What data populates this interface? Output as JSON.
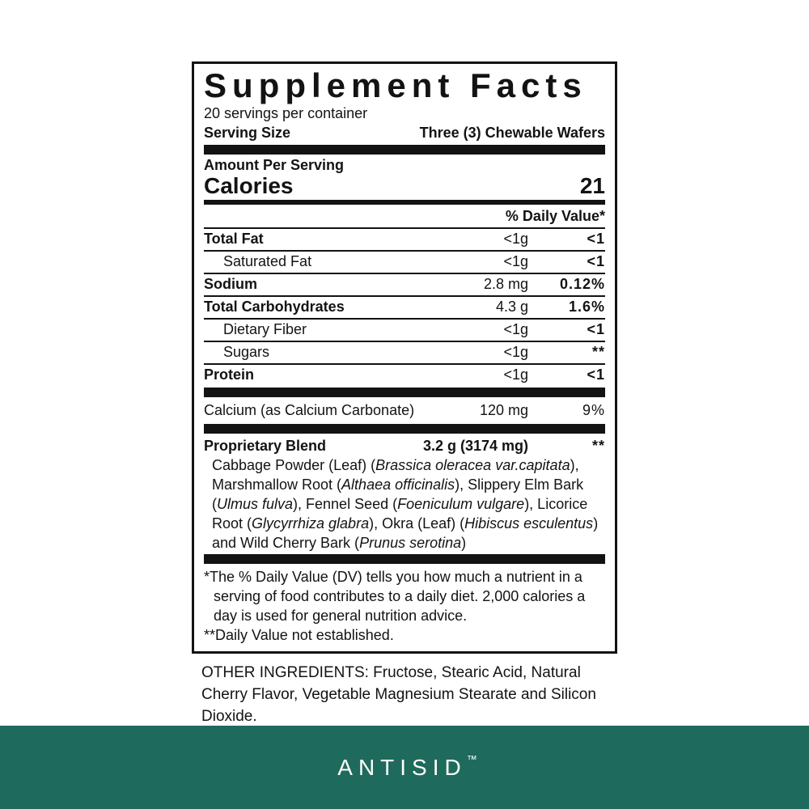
{
  "label": {
    "title": "Supplement Facts",
    "servings_per_container": "20 servings per container",
    "serving_size_label": "Serving Size",
    "serving_size_value": "Three (3) Chewable Wafers",
    "amount_per_serving": "Amount Per Serving",
    "calories_label": "Calories",
    "calories_value": "21",
    "daily_value_header": "% Daily Value*",
    "nutrient_rows": [
      {
        "name": "Total Fat",
        "amount": "<1g",
        "dv": "<1",
        "bold": true,
        "indent": false,
        "dv_bold": true
      },
      {
        "name": "Saturated Fat",
        "amount": "<1g",
        "dv": "<1",
        "bold": false,
        "indent": true,
        "dv_bold": true
      },
      {
        "name": "Sodium",
        "amount": "2.8 mg",
        "dv": "0.12%",
        "bold": true,
        "indent": false,
        "dv_bold": true
      },
      {
        "name": "Total Carbohydrates",
        "amount": "4.3 g",
        "dv": "1.6%",
        "bold": true,
        "indent": false,
        "dv_bold": true
      },
      {
        "name": "Dietary Fiber",
        "amount": "<1g",
        "dv": "<1",
        "bold": false,
        "indent": true,
        "dv_bold": true
      },
      {
        "name": "Sugars",
        "amount": "<1g",
        "dv": "**",
        "bold": false,
        "indent": true,
        "dv_bold": true
      },
      {
        "name": "Protein",
        "amount": "<1g",
        "dv": "<1",
        "bold": true,
        "indent": false,
        "dv_bold": true
      }
    ],
    "calcium_row": {
      "name": "Calcium (as Calcium Carbonate)",
      "amount": "120 mg",
      "dv": "9%"
    },
    "blend": {
      "name": "Proprietary Blend",
      "amount": "3.2 g (3174 mg)",
      "dv": "**",
      "description": [
        {
          "text": "Cabbage Powder (Leaf) (",
          "italic": false
        },
        {
          "text": "Brassica oleracea var.capitata",
          "italic": true
        },
        {
          "text": "), Marshmallow Root (",
          "italic": false
        },
        {
          "text": "Althaea officinalis",
          "italic": true
        },
        {
          "text": "), Slippery Elm Bark (",
          "italic": false
        },
        {
          "text": "Ulmus fulva",
          "italic": true
        },
        {
          "text": "), Fennel Seed (",
          "italic": false
        },
        {
          "text": "Foeniculum vulgare",
          "italic": true
        },
        {
          "text": "), Licorice Root (",
          "italic": false
        },
        {
          "text": "Glycyrrhiza glabra",
          "italic": true
        },
        {
          "text": "), Okra (Leaf) (",
          "italic": false
        },
        {
          "text": "Hibiscus esculentus",
          "italic": true
        },
        {
          "text": ") and Wild Cherry Bark (",
          "italic": false
        },
        {
          "text": "Prunus serotina",
          "italic": true
        },
        {
          "text": ")",
          "italic": false
        }
      ]
    },
    "footnote_dv": {
      "marker": "*",
      "text": "The % Daily Value (DV) tells you how much a nutrient in a serving of food contributes to a daily diet. 2,000 calories a day is used for general nutrition advice."
    },
    "footnote_ne": {
      "marker": "**",
      "text": "Daily Value not established."
    }
  },
  "other_ingredients": "OTHER INGREDIENTS: Fructose, Stearic Acid, Natural Cherry Flavor, Vegetable Magnesium Stearate and Silicon Dioxide.",
  "brand": {
    "name": "ANTISID",
    "tm": "™",
    "bar_color": "#1e6a5c",
    "text_color": "#ffffff"
  }
}
